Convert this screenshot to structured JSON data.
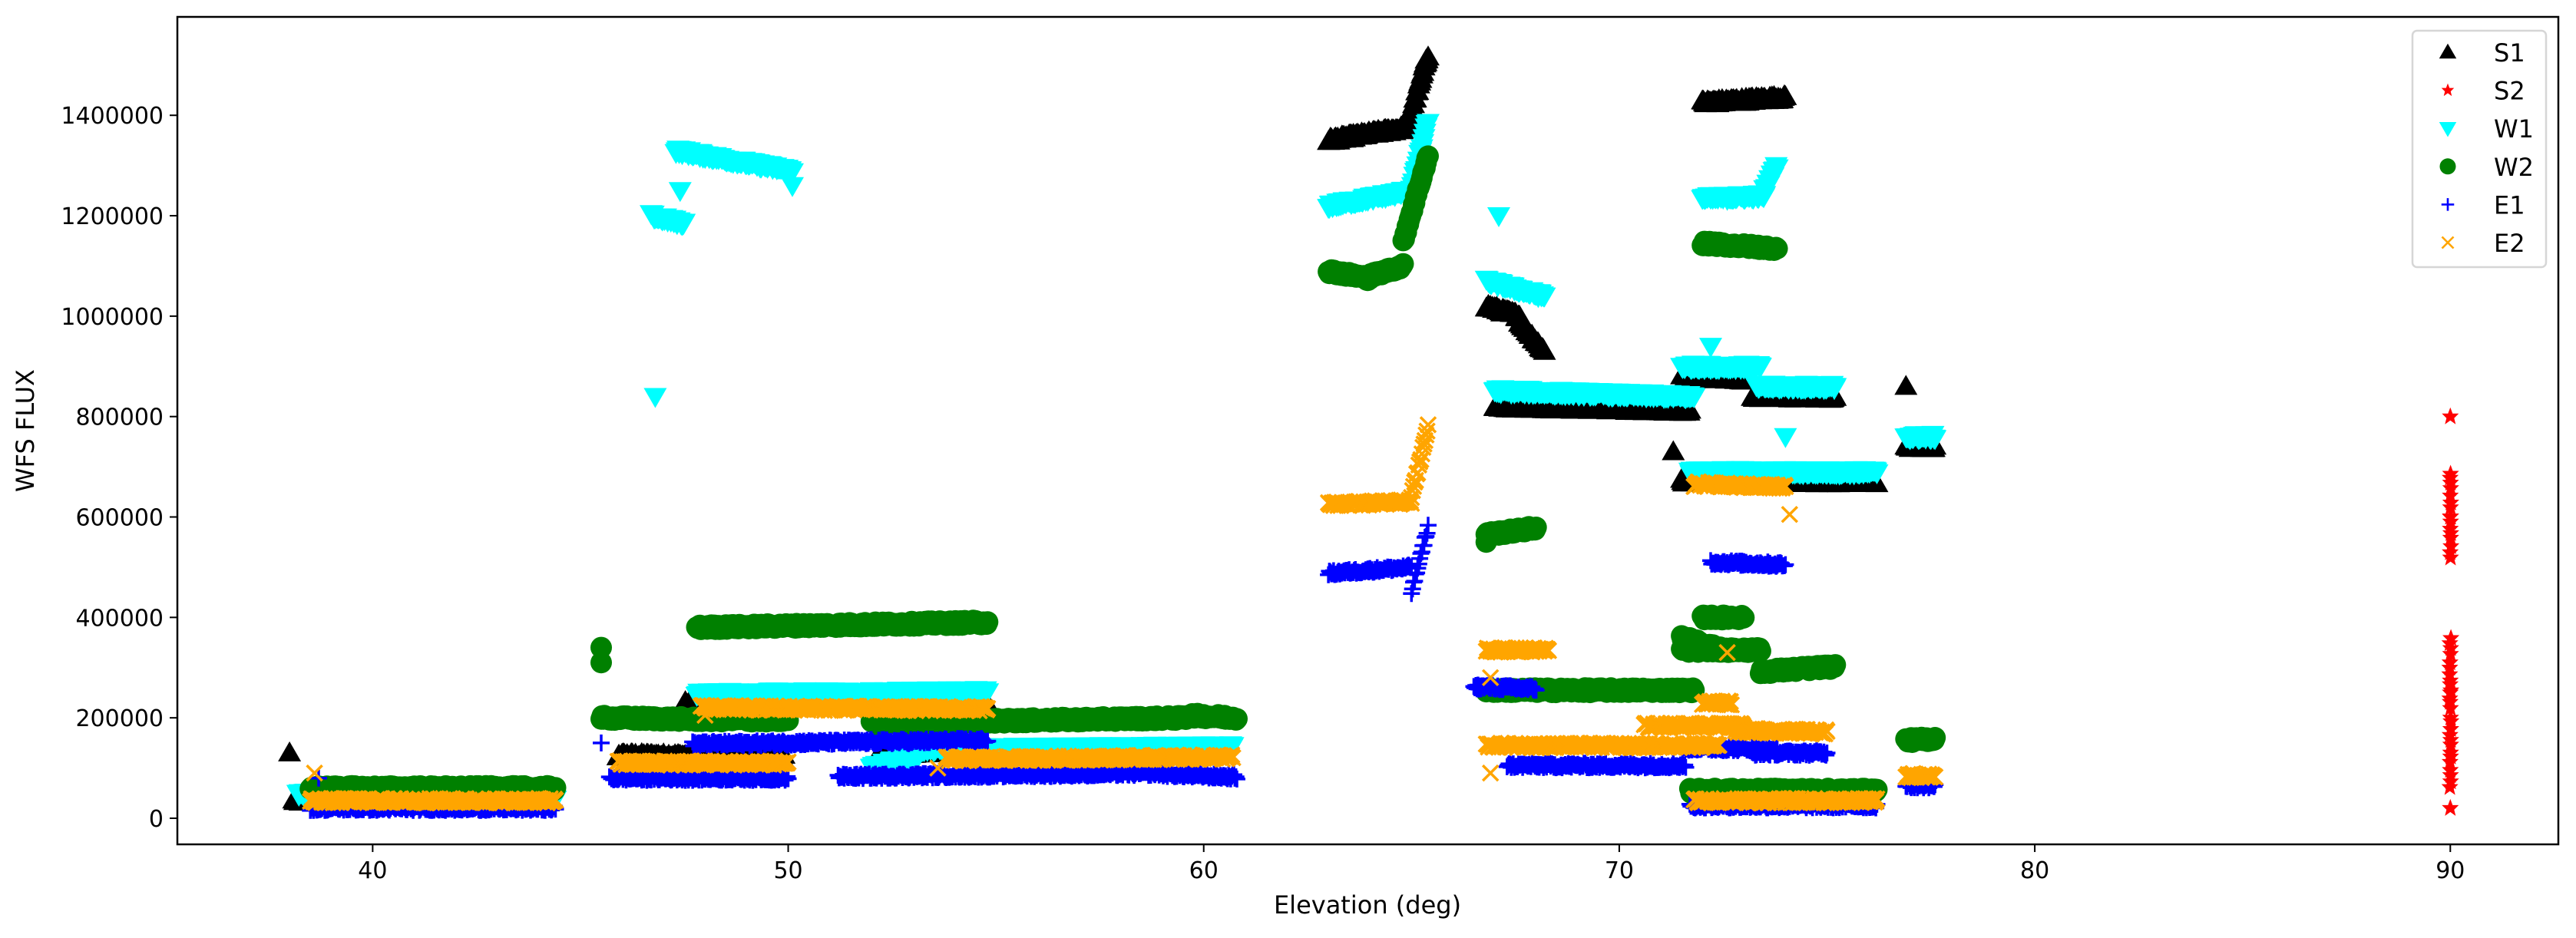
{
  "chart_data": {
    "type": "scatter",
    "title": "",
    "xlabel": "Elevation (deg)",
    "ylabel": "WFS FLUX",
    "xlim": [
      35.3,
      92.6
    ],
    "ylim": [
      -52000,
      1596000
    ],
    "xticks": [
      40,
      50,
      60,
      70,
      80,
      90
    ],
    "xtick_labels": [
      "40",
      "50",
      "60",
      "70",
      "80",
      "90"
    ],
    "yticks": [
      0,
      200000,
      400000,
      600000,
      800000,
      1000000,
      1200000,
      1400000
    ],
    "ytick_labels": [
      "0",
      "200000",
      "400000",
      "600000",
      "800000",
      "1000000",
      "1200000",
      "1400000"
    ],
    "grid": false,
    "legend_position": "top-right",
    "note": "runs are [x_start, x_end, y_start, y_end] stretches of densely sampled points; points are isolated [x, y] samples",
    "series": [
      {
        "name": "S1",
        "marker": "triangle-up",
        "color": "#000000",
        "runs": [
          [
            38.1,
            38.4,
            35000,
            35000
          ],
          [
            45.9,
            49.9,
            125000,
            122000
          ],
          [
            47.5,
            54.8,
            228000,
            225000
          ],
          [
            52.2,
            54.8,
            130000,
            135000
          ],
          [
            63.0,
            64.9,
            1350000,
            1375000
          ],
          [
            64.9,
            65.4,
            1380000,
            1520000
          ],
          [
            66.8,
            67.6,
            1020000,
            1000000
          ],
          [
            67.6,
            68.2,
            990000,
            930000
          ],
          [
            67.0,
            71.7,
            820000,
            812000
          ],
          [
            71.5,
            73.0,
            880000,
            875000
          ],
          [
            72.0,
            74.0,
            1425000,
            1435000
          ],
          [
            73.2,
            75.2,
            840000,
            838000
          ],
          [
            71.5,
            76.2,
            672000,
            670000
          ],
          [
            76.9,
            77.6,
            740000,
            740000
          ]
        ],
        "points": [
          [
            38.0,
            130000
          ],
          [
            71.3,
            730000
          ],
          [
            76.9,
            860000
          ],
          [
            65.35,
            1510000
          ]
        ]
      },
      {
        "name": "S2",
        "marker": "star",
        "color": "#ff0000",
        "runs": [
          [
            90.0,
            90.0,
            520000,
            690000
          ],
          [
            90.0,
            90.0,
            60000,
            360000
          ]
        ],
        "points": [
          [
            90.0,
            800000
          ],
          [
            90.0,
            20000
          ],
          [
            90.0,
            600000
          ],
          [
            90.0,
            250000
          ]
        ]
      },
      {
        "name": "W1",
        "marker": "triangle-down",
        "color": "#00ffff",
        "runs": [
          [
            38.2,
            38.6,
            50000,
            45000
          ],
          [
            38.6,
            44.4,
            40000,
            40000
          ],
          [
            46.7,
            47.5,
            1200000,
            1185000
          ],
          [
            47.3,
            50.1,
            1330000,
            1290000
          ],
          [
            47.8,
            54.8,
            248000,
            252000
          ],
          [
            52.0,
            53.2,
            100000,
            130000
          ],
          [
            53.2,
            60.7,
            138000,
            142000
          ],
          [
            63.0,
            65.0,
            1220000,
            1250000
          ],
          [
            65.0,
            65.4,
            1250000,
            1390000
          ],
          [
            66.8,
            68.2,
            1070000,
            1040000
          ],
          [
            67.0,
            71.8,
            852000,
            840000
          ],
          [
            71.5,
            73.4,
            900000,
            900000
          ],
          [
            73.3,
            75.2,
            860000,
            860000
          ],
          [
            72.0,
            73.5,
            1235000,
            1240000
          ],
          [
            73.5,
            73.8,
            1250000,
            1300000
          ],
          [
            71.7,
            76.2,
            690000,
            690000
          ],
          [
            76.9,
            77.6,
            760000,
            760000
          ]
        ],
        "points": [
          [
            46.8,
            840000
          ],
          [
            47.4,
            1250000
          ],
          [
            50.1,
            1260000
          ],
          [
            67.1,
            1200000
          ],
          [
            72.2,
            940000
          ],
          [
            74.0,
            760000
          ]
        ]
      },
      {
        "name": "W2",
        "marker": "circle",
        "color": "#008000",
        "runs": [
          [
            38.5,
            44.4,
            60000,
            60000
          ],
          [
            45.5,
            47.8,
            200000,
            197000
          ],
          [
            47.8,
            50.0,
            197000,
            196000
          ],
          [
            47.8,
            54.8,
            380000,
            390000
          ],
          [
            52.0,
            59.6,
            190000,
            200000
          ],
          [
            59.6,
            60.8,
            205000,
            200000
          ],
          [
            63.0,
            64.0,
            1090000,
            1075000
          ],
          [
            64.0,
            64.8,
            1080000,
            1100000
          ],
          [
            64.8,
            65.4,
            1150000,
            1320000
          ],
          [
            66.8,
            68.0,
            565000,
            578000
          ],
          [
            66.8,
            71.8,
            255000,
            255000
          ],
          [
            71.5,
            72.5,
            360000,
            335000
          ],
          [
            71.5,
            73.4,
            335000,
            335000
          ],
          [
            72.0,
            73.0,
            400000,
            400000
          ],
          [
            73.4,
            75.2,
            292000,
            302000
          ],
          [
            72.0,
            73.8,
            1145000,
            1135000
          ],
          [
            71.7,
            76.2,
            55000,
            55000
          ],
          [
            76.9,
            77.6,
            155000,
            158000
          ]
        ],
        "points": [
          [
            45.5,
            340000
          ],
          [
            45.5,
            310000
          ],
          [
            66.8,
            550000
          ]
        ]
      },
      {
        "name": "E1",
        "marker": "plus",
        "color": "#0000ff",
        "runs": [
          [
            38.5,
            44.4,
            20000,
            20000
          ],
          [
            45.7,
            50.0,
            80000,
            80000
          ],
          [
            47.7,
            54.8,
            148000,
            155000
          ],
          [
            51.2,
            59.0,
            83000,
            90000
          ],
          [
            59.0,
            60.8,
            88000,
            82000
          ],
          [
            63.0,
            65.0,
            488000,
            500000
          ],
          [
            65.0,
            65.4,
            450000,
            580000
          ],
          [
            66.5,
            68.0,
            262000,
            258000
          ],
          [
            67.3,
            71.6,
            105000,
            105000
          ],
          [
            71.5,
            73.8,
            140000,
            138000
          ],
          [
            73.2,
            75.0,
            130000,
            130000
          ],
          [
            72.2,
            74.0,
            510000,
            505000
          ],
          [
            71.7,
            76.2,
            25000,
            25000
          ],
          [
            76.9,
            77.6,
            65000,
            65000
          ]
        ],
        "points": [
          [
            38.7,
            80000
          ],
          [
            45.5,
            150000
          ]
        ]
      },
      {
        "name": "E2",
        "marker": "x",
        "color": "#ffa500",
        "runs": [
          [
            38.5,
            44.4,
            35000,
            35000
          ],
          [
            45.9,
            50.0,
            110000,
            110000
          ],
          [
            47.9,
            54.8,
            220000,
            218000
          ],
          [
            53.8,
            60.7,
            118000,
            122000
          ],
          [
            63.0,
            65.0,
            625000,
            630000
          ],
          [
            65.0,
            65.4,
            640000,
            780000
          ],
          [
            66.8,
            68.3,
            335000,
            335000
          ],
          [
            66.8,
            72.4,
            145000,
            145000
          ],
          [
            70.6,
            73.0,
            185000,
            185000
          ],
          [
            72.0,
            72.7,
            230000,
            230000
          ],
          [
            72.8,
            75.0,
            175000,
            172000
          ],
          [
            71.8,
            74.0,
            665000,
            660000
          ],
          [
            71.8,
            76.2,
            35000,
            35000
          ],
          [
            76.9,
            77.6,
            85000,
            85000
          ]
        ],
        "points": [
          [
            38.6,
            90000
          ],
          [
            53.6,
            100000
          ],
          [
            66.9,
            280000
          ],
          [
            66.9,
            90000
          ],
          [
            74.1,
            605000
          ],
          [
            71.9,
            670000
          ],
          [
            72.6,
            330000
          ],
          [
            48.0,
            205000
          ]
        ]
      }
    ]
  }
}
